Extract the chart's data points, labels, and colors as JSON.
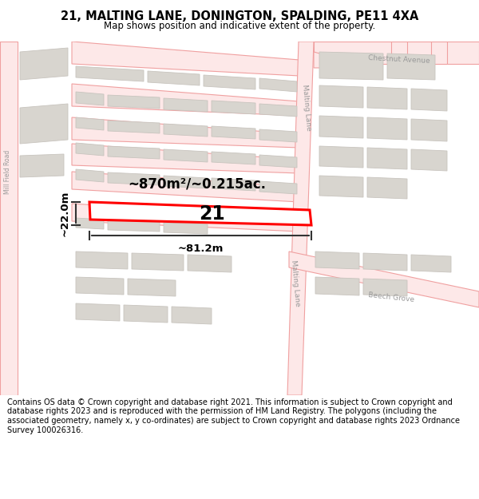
{
  "title_line1": "21, MALTING LANE, DONINGTON, SPALDING, PE11 4XA",
  "title_line2": "Map shows position and indicative extent of the property.",
  "footer_text": "Contains OS data © Crown copyright and database right 2021. This information is subject to Crown copyright and database rights 2023 and is reproduced with the permission of HM Land Registry. The polygons (including the associated geometry, namely x, y co-ordinates) are subject to Crown copyright and database rights 2023 Ordnance Survey 100026316.",
  "bg": "#ffffff",
  "map_bg": "#f7f5f3",
  "road_line": "#f0a0a0",
  "road_fill": "#fde8e8",
  "bld_fill": "#d8d5cf",
  "bld_edge": "#c8c4be",
  "red": "#ff0000",
  "dim_col": "#333333",
  "label_col": "#999999",
  "area_text": "~870m²/~0.215ac.",
  "width_text": "~81.2m",
  "height_text": "~22.0m",
  "plot_num": "21",
  "lbl_malting_top": "Malting Lane",
  "lbl_malting_bot": "Malting Lane",
  "lbl_chestnut": "Chestnut Avenue",
  "lbl_beech": "Beech Grove",
  "lbl_millfield": "Mill Field Road"
}
